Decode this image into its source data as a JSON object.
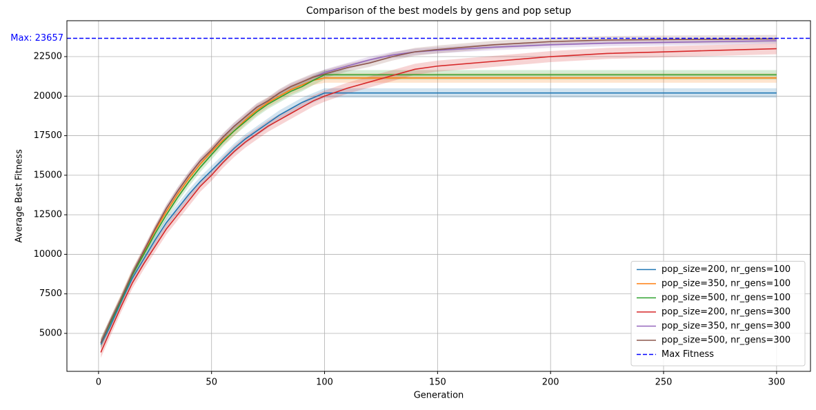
{
  "chart_data": {
    "type": "line",
    "title": "Comparison of the best models by gens and pop setup",
    "x_label": "Generation",
    "y_label": "Average Best Fitness",
    "x": [
      1,
      5,
      10,
      15,
      20,
      25,
      30,
      35,
      40,
      45,
      50,
      55,
      60,
      65,
      70,
      75,
      80,
      85,
      90,
      95,
      100,
      110,
      120,
      130,
      140,
      150,
      175,
      200,
      225,
      250,
      275,
      300
    ],
    "series": [
      {
        "name": "pop_size=200, nr_gens=100",
        "color": "#1f77b4",
        "std": 300,
        "values": [
          4300,
          5400,
          7000,
          8500,
          9700,
          10900,
          12000,
          12900,
          13800,
          14600,
          15300,
          16000,
          16700,
          17300,
          17800,
          18300,
          18800,
          19200,
          19600,
          19900,
          20200,
          20200,
          20200,
          20200,
          20200,
          20200,
          20200,
          20200,
          20200,
          20200,
          20200,
          20200
        ]
      },
      {
        "name": "pop_size=350, nr_gens=100",
        "color": "#ff7f0e",
        "std": 300,
        "values": [
          4400,
          5600,
          7200,
          8800,
          10100,
          11500,
          12700,
          13800,
          14800,
          15700,
          16500,
          17200,
          17800,
          18500,
          19100,
          19600,
          20000,
          20400,
          20700,
          21000,
          21150,
          21150,
          21150,
          21150,
          21150,
          21150,
          21150,
          21150,
          21150,
          21150,
          21150,
          21150
        ]
      },
      {
        "name": "pop_size=500, nr_gens=100",
        "color": "#2ca02c",
        "std": 300,
        "values": [
          4400,
          5600,
          7100,
          8700,
          10000,
          11300,
          12500,
          13600,
          14600,
          15500,
          16300,
          17100,
          17800,
          18400,
          19000,
          19500,
          19900,
          20300,
          20600,
          21000,
          21350,
          21350,
          21350,
          21350,
          21350,
          21350,
          21350,
          21350,
          21350,
          21350,
          21350,
          21350
        ]
      },
      {
        "name": "pop_size=200, nr_gens=300",
        "color": "#d62728",
        "std": 350,
        "values": [
          3800,
          5100,
          6700,
          8200,
          9400,
          10500,
          11600,
          12500,
          13400,
          14300,
          15000,
          15800,
          16500,
          17100,
          17600,
          18100,
          18500,
          18900,
          19300,
          19700,
          20000,
          20500,
          20900,
          21300,
          21700,
          21900,
          22200,
          22500,
          22700,
          22800,
          22900,
          23000
        ]
      },
      {
        "name": "pop_size=350, nr_gens=300",
        "color": "#9467bd",
        "std": 200,
        "values": [
          4400,
          5700,
          7200,
          8800,
          10200,
          11600,
          12900,
          14000,
          15000,
          15900,
          16600,
          17400,
          18100,
          18700,
          19300,
          19700,
          20200,
          20600,
          20900,
          21200,
          21500,
          21900,
          22300,
          22600,
          22800,
          22900,
          23100,
          23250,
          23350,
          23400,
          23450,
          23500
        ]
      },
      {
        "name": "pop_size=500, nr_gens=300",
        "color": "#8c564b",
        "std": 250,
        "values": [
          4400,
          5700,
          7200,
          8800,
          10200,
          11600,
          12900,
          14000,
          15000,
          15900,
          16600,
          17400,
          18100,
          18700,
          19300,
          19700,
          20200,
          20600,
          20900,
          21200,
          21400,
          21800,
          22100,
          22500,
          22800,
          22950,
          23250,
          23450,
          23550,
          23580,
          23600,
          23620
        ]
      }
    ],
    "reference_line": {
      "name": "Max Fitness",
      "value": 23657,
      "label": "Max: 23657",
      "color": "#0000ff"
    },
    "xlim": [
      -14,
      315
    ],
    "ylim": [
      2600,
      24770
    ],
    "xticks": [
      0,
      50,
      100,
      150,
      200,
      250,
      300
    ],
    "yticks": [
      5000,
      7500,
      10000,
      12500,
      15000,
      17500,
      20000,
      22500
    ],
    "grid": true,
    "legend": "lower right"
  }
}
